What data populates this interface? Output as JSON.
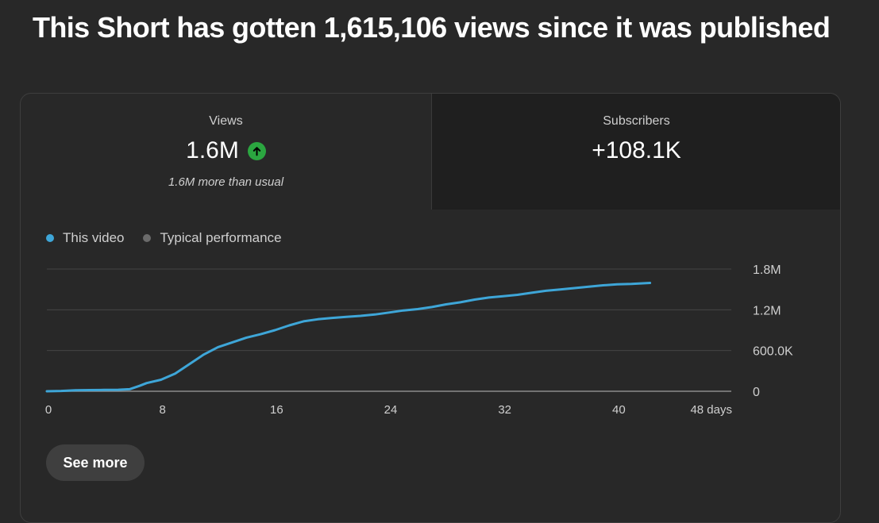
{
  "headline": "This Short has gotten 1,615,106 views since it was published",
  "tabs": {
    "views": {
      "label": "Views",
      "value": "1.6M",
      "trend_icon": "arrow-up-circle-icon",
      "note": "1.6M more than usual"
    },
    "subscribers": {
      "label": "Subscribers",
      "value": "+108.1K"
    }
  },
  "legend": [
    {
      "name": "This video",
      "color": "#3ea6d8"
    },
    {
      "name": "Typical performance",
      "color": "#6b6b6b"
    }
  ],
  "colors": {
    "positive": "#2ba640",
    "line": "#3ea6d8"
  },
  "chart_data": {
    "type": "line",
    "xlim": [
      0,
      48
    ],
    "ylim": [
      0,
      1800000
    ],
    "x_ticks": [
      "0",
      "8",
      "16",
      "24",
      "32",
      "40",
      "48 days"
    ],
    "x_tick_values": [
      0,
      8,
      16,
      24,
      32,
      40,
      48
    ],
    "y_ticks": [
      "0",
      "600.0K",
      "1.2M",
      "1.8M"
    ],
    "y_tick_values": [
      0,
      600000,
      1200000,
      1800000
    ],
    "grid": true,
    "legend_position": "top-left",
    "series": [
      {
        "name": "This video",
        "x": [
          0,
          1,
          2,
          3,
          4,
          5,
          5.8,
          6.5,
          7,
          8,
          9,
          10,
          11,
          12,
          13,
          14,
          15,
          16,
          17,
          18,
          19,
          20,
          21,
          22,
          23,
          24,
          25,
          26,
          27,
          28,
          29,
          30,
          31,
          32,
          33,
          34,
          35,
          36,
          37,
          38,
          39,
          40,
          41,
          42.3
        ],
        "y": [
          0,
          5000,
          15000,
          18000,
          20000,
          22000,
          30000,
          80000,
          120000,
          170000,
          260000,
          400000,
          540000,
          650000,
          720000,
          790000,
          840000,
          900000,
          970000,
          1030000,
          1060000,
          1080000,
          1095000,
          1110000,
          1130000,
          1160000,
          1190000,
          1210000,
          1240000,
          1280000,
          1310000,
          1350000,
          1380000,
          1400000,
          1420000,
          1450000,
          1480000,
          1500000,
          1520000,
          1540000,
          1560000,
          1575000,
          1580000,
          1595000
        ]
      }
    ]
  },
  "see_more_label": "See more"
}
